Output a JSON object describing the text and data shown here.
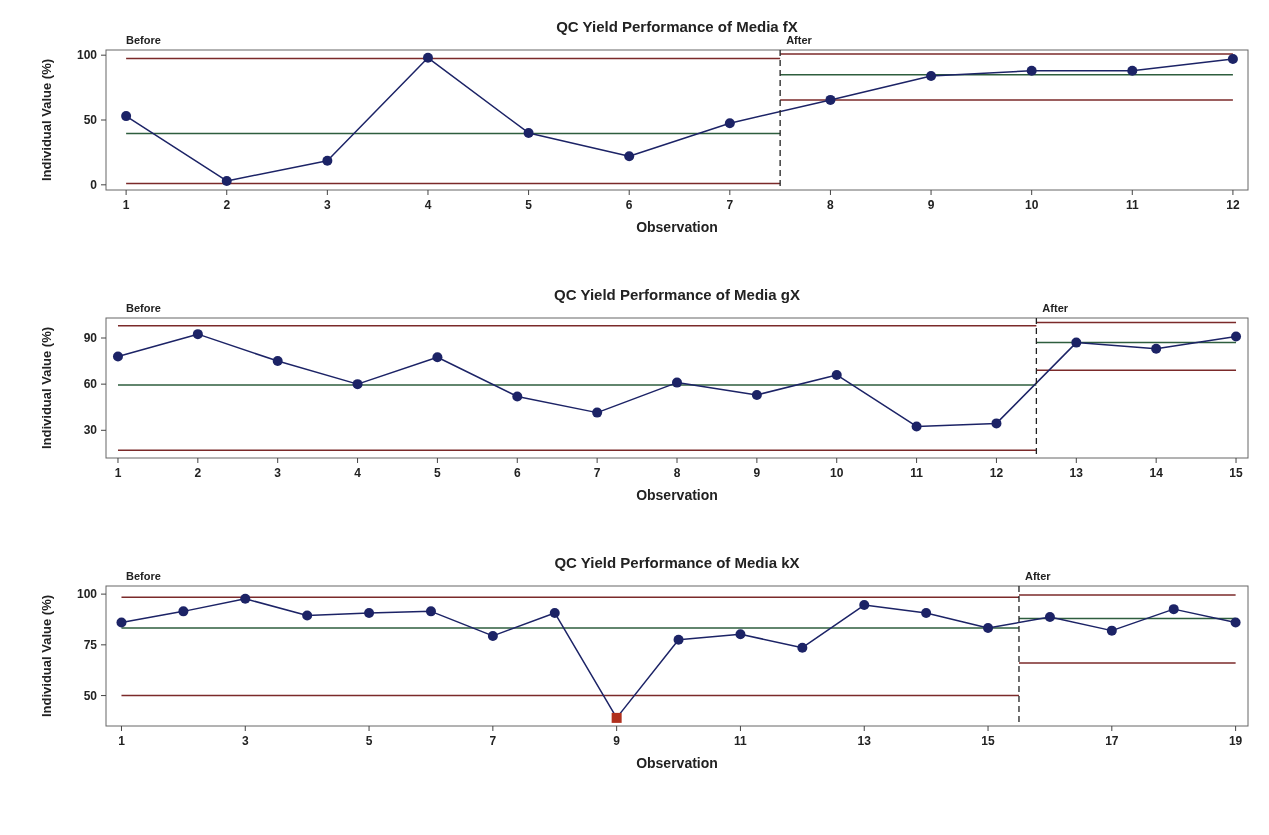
{
  "chart_data": [
    {
      "type": "line",
      "title": "QC Yield Performance of Media fX",
      "xlabel": "Observation",
      "ylabel": "Individual Value (%)",
      "x": [
        1,
        2,
        3,
        4,
        5,
        6,
        7,
        8,
        9,
        10,
        11,
        12
      ],
      "xlim": [
        0.8,
        12.15
      ],
      "xticks": [
        1,
        2,
        3,
        4,
        5,
        6,
        7,
        8,
        9,
        10,
        11,
        12
      ],
      "ylim": [
        -4,
        104
      ],
      "yticks": [
        0,
        50,
        100
      ],
      "grid": false,
      "marker": "circle",
      "annotations": [
        "Before"
      ],
      "ref_lines": [
        {
          "axis": "x",
          "value": 7.5,
          "label": "After",
          "color": "#222222",
          "line_style": "dashed"
        }
      ],
      "series": [
        {
          "color": "#7b2a2a",
          "x": [
            1,
            7.5
          ],
          "values": [
            97.5,
            97.5
          ],
          "marker": "none"
        },
        {
          "color": "#2e5e3e",
          "x": [
            1,
            7.5
          ],
          "values": [
            39.5,
            39.5
          ],
          "marker": "none"
        },
        {
          "color": "#7b2a2a",
          "x": [
            1,
            7.5
          ],
          "values": [
            1,
            1
          ],
          "marker": "none"
        },
        {
          "color": "#7b2a2a",
          "x": [
            7.5,
            12
          ],
          "values": [
            101,
            101
          ],
          "marker": "none"
        },
        {
          "color": "#2e5e3e",
          "x": [
            7.5,
            12
          ],
          "values": [
            85,
            85
          ],
          "marker": "none"
        },
        {
          "color": "#7b2a2a",
          "x": [
            7.5,
            12
          ],
          "values": [
            65.5,
            65.5
          ],
          "marker": "none"
        },
        {
          "color": "#1c2366",
          "values": [
            53,
            3,
            18.5,
            98,
            40,
            22,
            47.5,
            65.5,
            84,
            88,
            88,
            97
          ]
        }
      ]
    },
    {
      "type": "line",
      "title": "QC Yield Performance of Media gX",
      "xlabel": "Observation",
      "ylabel": "Individual Value (%)",
      "x": [
        1,
        2,
        3,
        4,
        5,
        6,
        7,
        8,
        9,
        10,
        11,
        12,
        13,
        14,
        15
      ],
      "xlim": [
        0.85,
        15.15
      ],
      "xticks": [
        1,
        2,
        3,
        4,
        5,
        6,
        7,
        8,
        9,
        10,
        11,
        12,
        13,
        14,
        15
      ],
      "ylim": [
        12,
        103
      ],
      "yticks": [
        30,
        60,
        90
      ],
      "grid": false,
      "marker": "circle",
      "annotations": [
        "Before"
      ],
      "ref_lines": [
        {
          "axis": "x",
          "value": 12.5,
          "label": "After",
          "color": "#222222",
          "line_style": "dashed"
        }
      ],
      "series": [
        {
          "color": "#7b2a2a",
          "x": [
            1,
            12.5
          ],
          "values": [
            98,
            98
          ],
          "marker": "none"
        },
        {
          "color": "#2e5e3e",
          "x": [
            1,
            12.5
          ],
          "values": [
            59.5,
            59.5
          ],
          "marker": "none"
        },
        {
          "color": "#7b2a2a",
          "x": [
            1,
            12.5
          ],
          "values": [
            17,
            17
          ],
          "marker": "none"
        },
        {
          "color": "#7b2a2a",
          "x": [
            12.5,
            15
          ],
          "values": [
            100,
            100
          ],
          "marker": "none"
        },
        {
          "color": "#2e5e3e",
          "x": [
            12.5,
            15
          ],
          "values": [
            87,
            87
          ],
          "marker": "none"
        },
        {
          "color": "#7b2a2a",
          "x": [
            12.5,
            15
          ],
          "values": [
            69,
            69
          ],
          "marker": "none"
        },
        {
          "color": "#1c2366",
          "values": [
            78,
            92.5,
            75,
            60,
            77.5,
            52,
            41.5,
            61,
            53,
            66,
            32.5,
            34.5,
            87,
            83,
            91
          ]
        }
      ]
    },
    {
      "type": "line",
      "title": "QC Yield Performance of Media kX",
      "xlabel": "Observation",
      "ylabel": "Individual Value (%)",
      "x": [
        1,
        2,
        3,
        4,
        5,
        6,
        7,
        8,
        9,
        10,
        11,
        12,
        13,
        14,
        15,
        16,
        17,
        18,
        19
      ],
      "xlim": [
        0.75,
        19.2
      ],
      "xticks": [
        1,
        3,
        5,
        7,
        9,
        11,
        13,
        15,
        17,
        19
      ],
      "ylim": [
        35,
        104
      ],
      "yticks": [
        50,
        75,
        100
      ],
      "grid": false,
      "marker": "circle",
      "annotations": [
        "Before"
      ],
      "ref_lines": [
        {
          "axis": "x",
          "value": 15.5,
          "label": "After",
          "color": "#222222",
          "line_style": "dashed"
        }
      ],
      "series": [
        {
          "color": "#7b2a2a",
          "x": [
            1,
            15.5
          ],
          "values": [
            98.5,
            98.5
          ],
          "marker": "none"
        },
        {
          "color": "#2e5e3e",
          "x": [
            1,
            15.5
          ],
          "values": [
            83.3,
            83.3
          ],
          "marker": "none"
        },
        {
          "color": "#7b2a2a",
          "x": [
            1,
            15.5
          ],
          "values": [
            50,
            50
          ],
          "marker": "none"
        },
        {
          "color": "#7b2a2a",
          "x": [
            15.5,
            19
          ],
          "values": [
            99.6,
            99.6
          ],
          "marker": "none"
        },
        {
          "color": "#2e5e3e",
          "x": [
            15.5,
            19
          ],
          "values": [
            88,
            88
          ],
          "marker": "none"
        },
        {
          "color": "#7b2a2a",
          "x": [
            15.5,
            19
          ],
          "values": [
            66,
            66
          ],
          "marker": "none"
        },
        {
          "color": "#1c2366",
          "values": [
            86,
            91.5,
            97.7,
            89.5,
            90.7,
            91.5,
            79.4,
            90.7,
            39,
            77.5,
            80.2,
            73.6,
            94.6,
            90.7,
            83.3,
            88.7,
            82,
            92.6,
            86
          ],
          "marker": "none"
        },
        {
          "type": "scatter",
          "color": "#1c2366",
          "values": [
            86,
            91.5,
            97.7,
            89.5,
            90.7,
            91.5,
            79.4,
            90.7,
            null,
            77.5,
            80.2,
            73.6,
            94.6,
            90.7,
            83.3,
            88.7,
            82,
            92.6,
            86
          ]
        },
        {
          "type": "scatter",
          "color": "#b0301e",
          "x": [
            9
          ],
          "values": [
            39
          ],
          "marker": "square"
        }
      ]
    }
  ]
}
